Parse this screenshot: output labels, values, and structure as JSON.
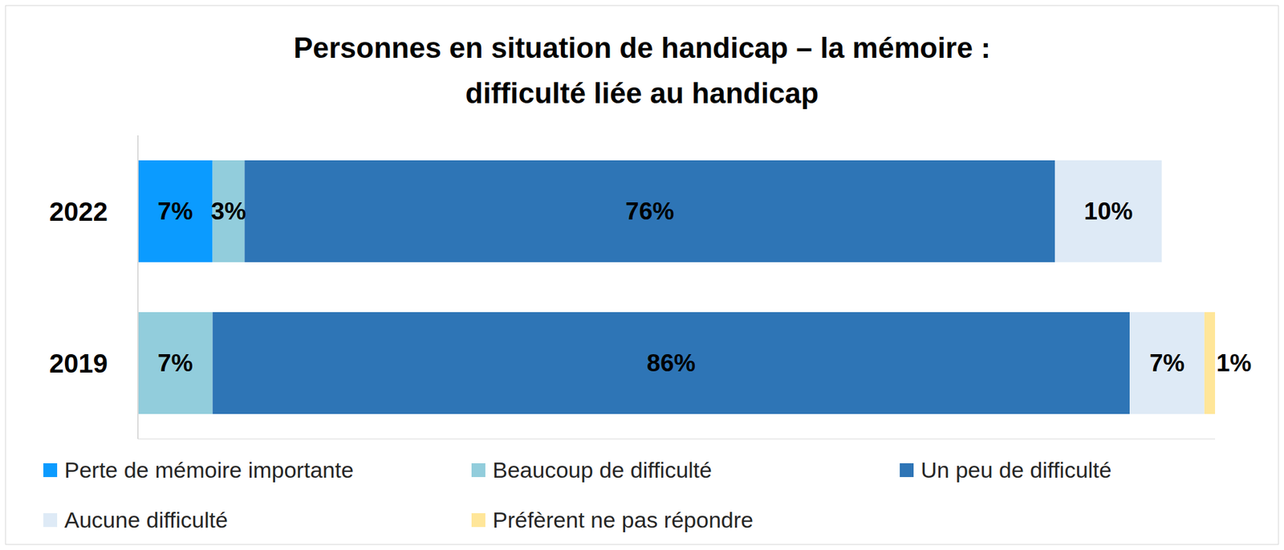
{
  "chart_data": {
    "type": "bar",
    "title": "Personnes en situation de handicap – la mémoire :\ndifficulté liée au handicap",
    "orientation": "horizontal",
    "stacked": true,
    "data_labels": true,
    "tick_labels": "y",
    "grid": false,
    "categories": [
      "2022",
      "2019"
    ],
    "xlim": [
      0,
      101
    ],
    "series": [
      {
        "name": "Perte de mémoire importante",
        "color": "#0b9bff",
        "values": [
          7,
          null
        ],
        "value_labels": [
          "7%",
          null
        ]
      },
      {
        "name": "Beaucoup de difficulté",
        "color": "#92cddc",
        "values": [
          3,
          7
        ],
        "value_labels": [
          "3%",
          "7%"
        ]
      },
      {
        "name": "Un peu de difficulté",
        "color": "#2e75b6",
        "values": [
          76,
          86
        ],
        "value_labels": [
          "76%",
          "86%"
        ]
      },
      {
        "name": "Aucune difficulté",
        "color": "#deeaf6",
        "values": [
          10,
          7
        ],
        "value_labels": [
          "10%",
          "7%"
        ]
      },
      {
        "name": "Préfèrent ne pas répondre",
        "color": "#ffe699",
        "values": [
          null,
          1
        ],
        "value_labels": [
          null,
          "1%"
        ]
      }
    ]
  }
}
